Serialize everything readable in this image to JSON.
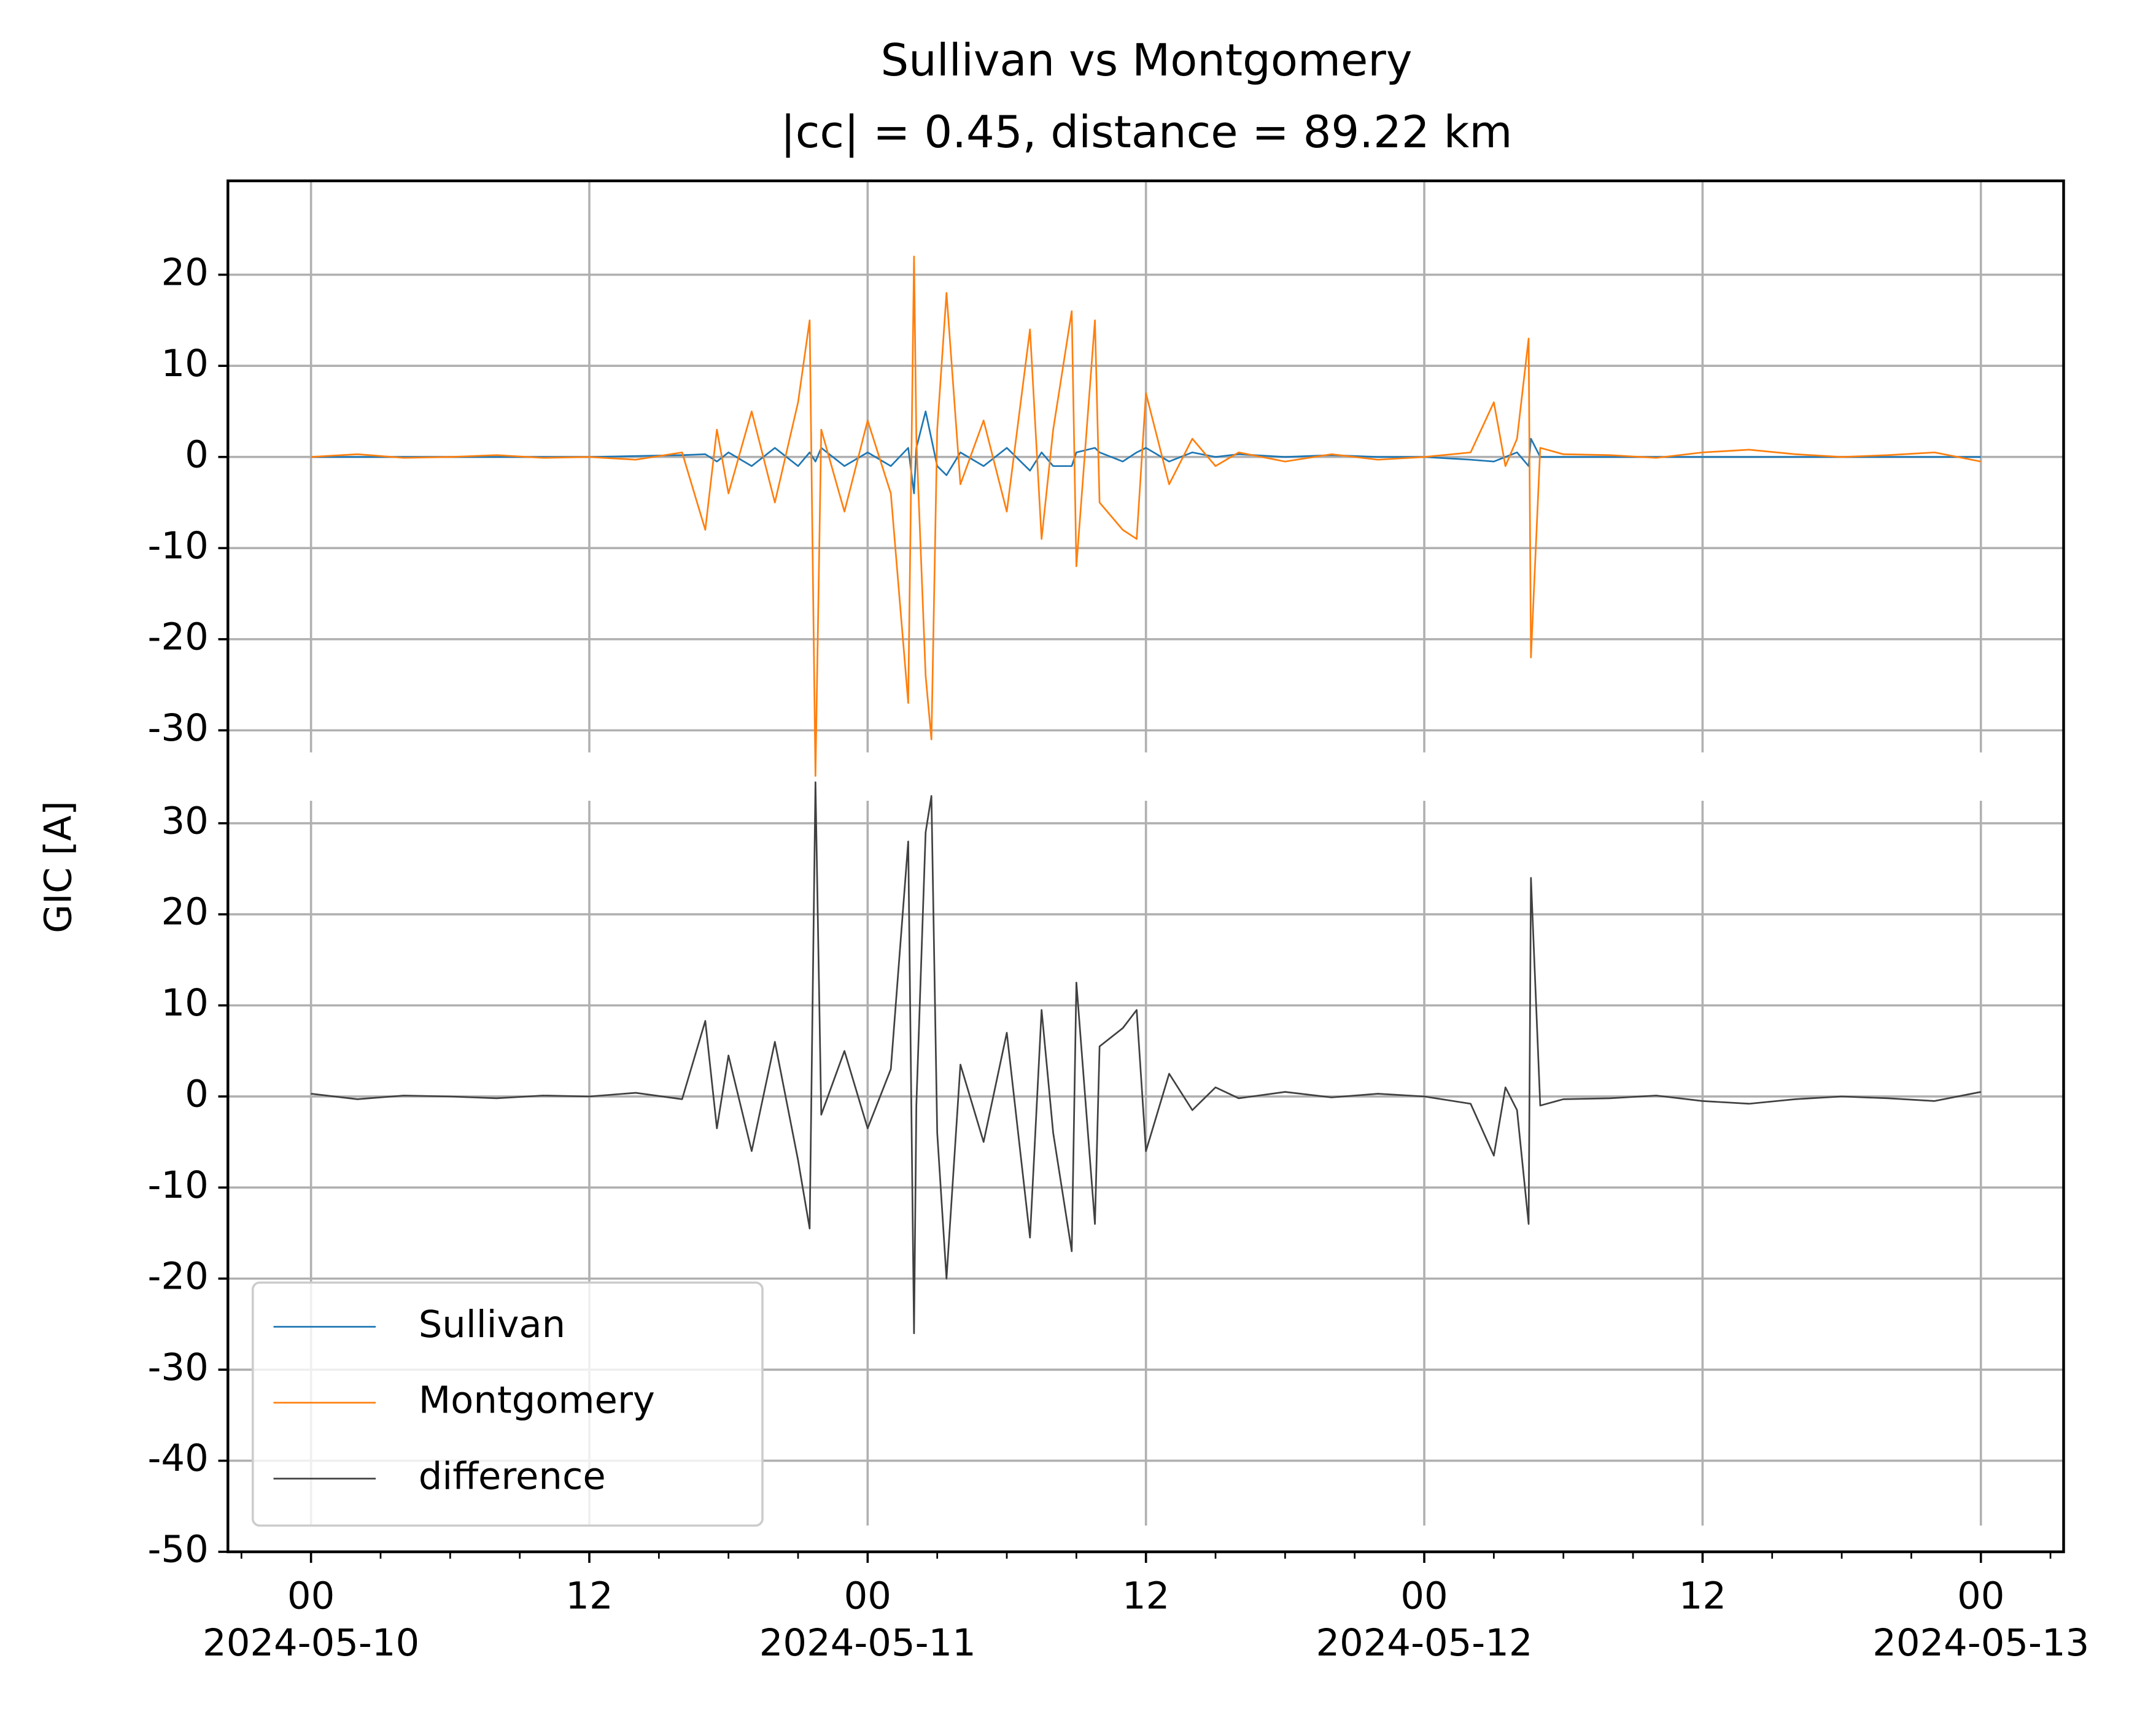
{
  "chart_data": [
    {
      "type": "line",
      "title": "Sullivan vs Montgomery",
      "subtitle": "|cc| = 0.45, distance = 89.22 km",
      "ylabel": "GIC [A]",
      "legend": "lower left",
      "grid": true,
      "x": [
        "2024-05-10 00:00",
        "2024-05-10 02:00",
        "2024-05-10 04:00",
        "2024-05-10 06:00",
        "2024-05-10 08:00",
        "2024-05-10 10:00",
        "2024-05-10 12:00",
        "2024-05-10 14:00",
        "2024-05-10 16:00",
        "2024-05-10 17:00",
        "2024-05-10 17:30",
        "2024-05-10 18:00",
        "2024-05-10 19:00",
        "2024-05-10 20:00",
        "2024-05-10 21:00",
        "2024-05-10 21:30",
        "2024-05-10 21:45",
        "2024-05-10 22:00",
        "2024-05-10 23:00",
        "2024-05-11 00:00",
        "2024-05-11 01:00",
        "2024-05-11 01:45",
        "2024-05-11 02:00",
        "2024-05-11 02:06",
        "2024-05-11 02:30",
        "2024-05-11 02:45",
        "2024-05-11 03:00",
        "2024-05-11 03:24",
        "2024-05-11 04:00",
        "2024-05-11 05:00",
        "2024-05-11 06:00",
        "2024-05-11 07:00",
        "2024-05-11 07:30",
        "2024-05-11 08:00",
        "2024-05-11 08:48",
        "2024-05-11 09:00",
        "2024-05-11 09:48",
        "2024-05-11 10:00",
        "2024-05-11 11:00",
        "2024-05-11 11:36",
        "2024-05-11 12:00",
        "2024-05-11 13:00",
        "2024-05-11 14:00",
        "2024-05-11 15:00",
        "2024-05-11 16:00",
        "2024-05-11 18:00",
        "2024-05-11 20:00",
        "2024-05-11 22:00",
        "2024-05-12 00:00",
        "2024-05-12 02:00",
        "2024-05-12 03:00",
        "2024-05-12 03:30",
        "2024-05-12 04:00",
        "2024-05-12 04:30",
        "2024-05-12 04:36",
        "2024-05-12 05:00",
        "2024-05-12 06:00",
        "2024-05-12 08:00",
        "2024-05-12 10:00",
        "2024-05-12 12:00",
        "2024-05-12 14:00",
        "2024-05-12 16:00",
        "2024-05-12 18:00",
        "2024-05-12 20:00",
        "2024-05-12 22:00",
        "2024-05-13 00:00"
      ],
      "ylim": [
        -35,
        30.3
      ],
      "yticks": [
        {
          "value": -30,
          "label": "-30"
        },
        {
          "value": -20,
          "label": "-20"
        },
        {
          "value": -10,
          "label": "-10"
        },
        0,
        10,
        20
      ],
      "series": [
        {
          "name": "Sullivan",
          "color": "#1f77b4",
          "values": [
            0,
            0,
            0,
            0,
            0,
            0,
            0,
            0.1,
            0.2,
            0.3,
            -0.5,
            0.5,
            -1,
            1,
            -1,
            0.5,
            -0.5,
            1,
            -1,
            0.5,
            -1,
            1,
            -4,
            1,
            5,
            2,
            -1,
            -2,
            0.5,
            -1,
            1,
            -1.5,
            0.5,
            -1,
            -1,
            0.5,
            1,
            0.5,
            -0.5,
            0.5,
            1,
            -0.5,
            0.5,
            0,
            0.3,
            0,
            0.2,
            0,
            0,
            -0.3,
            -0.5,
            0,
            0.5,
            -1,
            2,
            0,
            0,
            0,
            0,
            0,
            0,
            0,
            0,
            0,
            0,
            0
          ]
        },
        {
          "name": "Montgomery",
          "color": "#ff7f0e",
          "values": [
            0,
            0.3,
            -0.1,
            0,
            0.2,
            -0.1,
            0,
            -0.3,
            0.5,
            -8,
            3,
            -4,
            5,
            -5,
            6,
            15,
            -35,
            3,
            -6,
            4,
            -4,
            -27,
            22,
            2,
            -24,
            -31,
            3,
            18,
            -3,
            4,
            -6,
            14,
            -9,
            3,
            16,
            -12,
            15,
            -5,
            -8,
            -9,
            7,
            -3,
            2,
            -1,
            0.5,
            -0.5,
            0.3,
            -0.3,
            0,
            0.5,
            6,
            -1,
            2,
            13,
            -22,
            1,
            0.3,
            0.2,
            -0.1,
            0.5,
            0.8,
            0.3,
            0,
            0.2,
            0.5,
            -0.5
          ]
        }
      ]
    },
    {
      "type": "line",
      "grid": true,
      "x": [
        "2024-05-10 00:00",
        "2024-05-10 02:00",
        "2024-05-10 04:00",
        "2024-05-10 06:00",
        "2024-05-10 08:00",
        "2024-05-10 10:00",
        "2024-05-10 12:00",
        "2024-05-10 14:00",
        "2024-05-10 16:00",
        "2024-05-10 17:00",
        "2024-05-10 17:30",
        "2024-05-10 18:00",
        "2024-05-10 19:00",
        "2024-05-10 20:00",
        "2024-05-10 21:00",
        "2024-05-10 21:30",
        "2024-05-10 21:45",
        "2024-05-10 22:00",
        "2024-05-10 23:00",
        "2024-05-11 00:00",
        "2024-05-11 01:00",
        "2024-05-11 01:45",
        "2024-05-11 02:00",
        "2024-05-11 02:06",
        "2024-05-11 02:30",
        "2024-05-11 02:45",
        "2024-05-11 03:00",
        "2024-05-11 03:24",
        "2024-05-11 04:00",
        "2024-05-11 05:00",
        "2024-05-11 06:00",
        "2024-05-11 07:00",
        "2024-05-11 07:30",
        "2024-05-11 08:00",
        "2024-05-11 08:48",
        "2024-05-11 09:00",
        "2024-05-11 09:48",
        "2024-05-11 10:00",
        "2024-05-11 11:00",
        "2024-05-11 11:36",
        "2024-05-11 12:00",
        "2024-05-11 13:00",
        "2024-05-11 14:00",
        "2024-05-11 15:00",
        "2024-05-11 16:00",
        "2024-05-11 18:00",
        "2024-05-11 20:00",
        "2024-05-11 22:00",
        "2024-05-12 00:00",
        "2024-05-12 02:00",
        "2024-05-12 03:00",
        "2024-05-12 03:30",
        "2024-05-12 04:00",
        "2024-05-12 04:30",
        "2024-05-12 04:36",
        "2024-05-12 05:00",
        "2024-05-12 06:00",
        "2024-05-12 08:00",
        "2024-05-12 10:00",
        "2024-05-12 12:00",
        "2024-05-12 14:00",
        "2024-05-12 16:00",
        "2024-05-12 18:00",
        "2024-05-12 20:00",
        "2024-05-12 22:00",
        "2024-05-13 00:00"
      ],
      "xlim": [
        "2024-05-09 20:25",
        "2024-05-13 03:34"
      ],
      "xticks": [
        {
          "value": "2024-05-10 00:00",
          "label": "00\n2024-05-10"
        },
        {
          "value": "2024-05-10 12:00",
          "label": "12"
        },
        {
          "value": "2024-05-11 00:00",
          "label": "00\n2024-05-11"
        },
        {
          "value": "2024-05-11 12:00",
          "label": "12"
        },
        {
          "value": "2024-05-12 00:00",
          "label": "00\n2024-05-12"
        },
        {
          "value": "2024-05-12 12:00",
          "label": "12"
        },
        {
          "value": "2024-05-13 00:00",
          "label": "00\n2024-05-13"
        }
      ],
      "xminorticks": [
        "2024-05-09 21:00",
        "2024-05-10 03:00",
        "2024-05-10 06:00",
        "2024-05-10 09:00",
        "2024-05-10 15:00",
        "2024-05-10 18:00",
        "2024-05-10 21:00",
        "2024-05-11 03:00",
        "2024-05-11 06:00",
        "2024-05-11 09:00",
        "2024-05-11 15:00",
        "2024-05-11 18:00",
        "2024-05-11 21:00",
        "2024-05-12 03:00",
        "2024-05-12 06:00",
        "2024-05-12 09:00",
        "2024-05-12 15:00",
        "2024-05-12 18:00",
        "2024-05-12 21:00",
        "2024-05-13 03:00"
      ],
      "ylim": [
        -50,
        35.2
      ],
      "yticks": [
        -50,
        -40,
        -30,
        -20,
        -10,
        0,
        10,
        20,
        30
      ],
      "series": [
        {
          "name": "difference",
          "color": "#404040",
          "values": [
            0.3,
            -0.3,
            0.1,
            0,
            -0.2,
            0.1,
            0,
            0.4,
            -0.3,
            8.3,
            -3.5,
            4.5,
            -6,
            6,
            -7,
            -14.5,
            34.5,
            -2,
            5,
            -3.5,
            3,
            28,
            -26,
            -1,
            29,
            33,
            -4,
            -20,
            3.5,
            -5,
            7,
            -15.5,
            9.5,
            -4,
            -17,
            12.5,
            -14,
            5.5,
            7.5,
            9.5,
            -6,
            2.5,
            -1.5,
            1,
            -0.2,
            0.5,
            -0.1,
            0.3,
            0,
            -0.8,
            -6.5,
            1,
            -1.5,
            -14,
            24,
            -1,
            -0.3,
            -0.2,
            0.1,
            -0.5,
            -0.8,
            -0.3,
            0,
            -0.2,
            -0.5,
            0.5
          ]
        }
      ]
    }
  ]
}
